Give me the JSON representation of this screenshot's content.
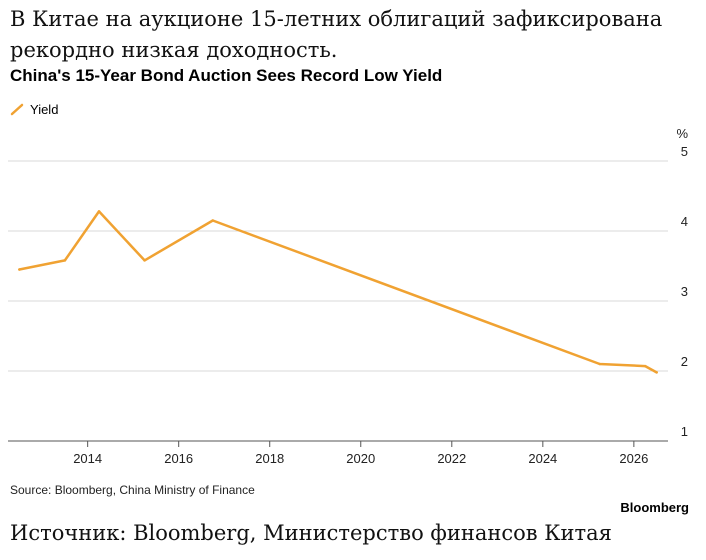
{
  "headline": "В Китае на аукционе 15-летних облигаций зафиксирована рекордно низкая доходность.",
  "caption": "Источник: Bloomberg, Министерство финансов Китая",
  "brand": "Bloomberg",
  "source": "Source: Bloomberg, China Ministry of Finance",
  "colors": {
    "line": "#f0a232",
    "grid": "#d9d9d9",
    "axis": "#555555"
  },
  "chart_data": {
    "type": "line",
    "title": "China's 15-Year Bond Auction Sees Record Low Yield",
    "xlabel": "",
    "ylabel": "%",
    "y_unit": "%",
    "xlim": [
      2012.25,
      2026.75
    ],
    "ylim": [
      1,
      5
    ],
    "x_ticks": [
      2014,
      2016,
      2018,
      2020,
      2022,
      2024,
      2026
    ],
    "y_ticks": [
      1,
      2,
      3,
      4,
      5
    ],
    "grid": true,
    "y_axis_side": "right",
    "legend_position": "top-left",
    "series": [
      {
        "name": "Yield",
        "x": [
          2012.5,
          2013.5,
          2014.25,
          2015.25,
          2016.75,
          2025.25,
          2026.25,
          2026.5
        ],
        "y": [
          3.45,
          3.58,
          4.28,
          3.58,
          4.15,
          2.1,
          2.07,
          1.98
        ]
      }
    ]
  }
}
